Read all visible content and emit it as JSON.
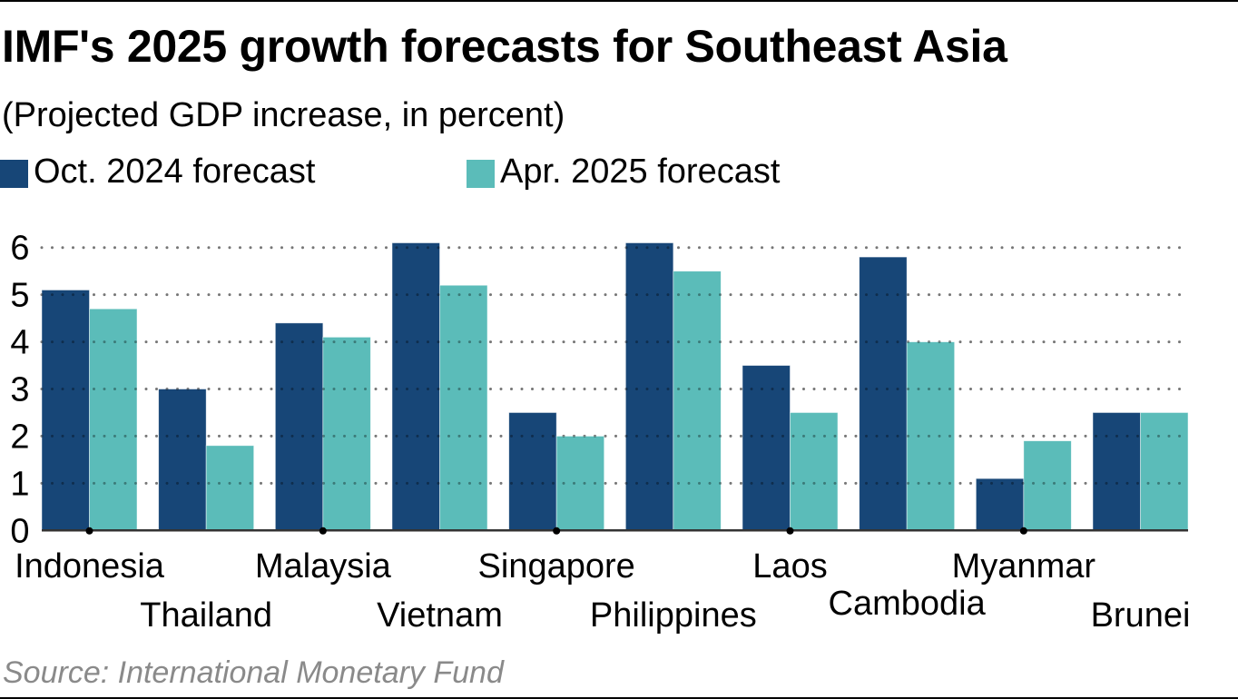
{
  "chart_data": {
    "type": "bar",
    "title": "IMF's 2025 growth forecasts for Southeast Asia",
    "subtitle": "(Projected GDP increase, in percent)",
    "xlabel": "",
    "ylabel": "",
    "categories": [
      "Indonesia",
      "Thailand",
      "Malaysia",
      "Vietnam",
      "Singapore",
      "Philippines",
      "Laos",
      "Cambodia",
      "Myanmar",
      "Brunei"
    ],
    "series": [
      {
        "name": "Oct. 2024 forecast",
        "color": "#174677",
        "values": [
          5.1,
          3.0,
          4.4,
          6.1,
          2.5,
          6.1,
          3.5,
          5.8,
          1.1,
          2.5
        ]
      },
      {
        "name": "Apr. 2025 forecast",
        "color": "#5bbcb9",
        "values": [
          4.7,
          1.8,
          4.1,
          5.2,
          2.0,
          5.5,
          2.5,
          4.0,
          1.9,
          2.5
        ]
      }
    ],
    "ylim": [
      0,
      6
    ],
    "yticks": [
      0,
      1,
      2,
      3,
      4,
      5,
      6
    ],
    "grid": true,
    "grid_style": "dotted",
    "legend_position": "top-left",
    "label_layout": "staggered",
    "source": "Source: International Monetary Fund"
  },
  "colors": {
    "oct": "#174677",
    "apr": "#5bbcb9",
    "grid": "#b5b5b5",
    "axis": "#333333",
    "source": "#8a8a8a"
  }
}
